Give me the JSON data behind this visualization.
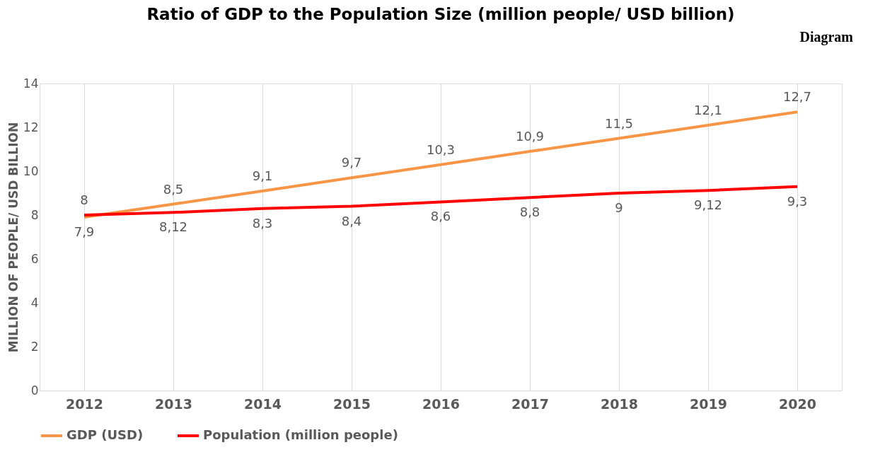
{
  "chart_data": {
    "type": "line",
    "title": "Ratio of GDP to the Population Size (million people/ USD billion)",
    "ylabel": "MILLION OF PEOPLE/ USD BILLION",
    "annotations": [
      "Diagram"
    ],
    "categories": [
      "2012",
      "2013",
      "2014",
      "2015",
      "2016",
      "2017",
      "2018",
      "2019",
      "2020"
    ],
    "series": [
      {
        "name": "GDP (USD)",
        "color": "#f79646",
        "values": [
          7.9,
          8.5,
          9.1,
          9.7,
          10.3,
          10.9,
          11.5,
          12.1,
          12.7
        ],
        "value_labels": [
          "7,9",
          "8,5",
          "9,1",
          "9,7",
          "10,3",
          "10,9",
          "11,5",
          "12,1",
          "12,7"
        ]
      },
      {
        "name": "Population (million people)",
        "color": "#ff0000",
        "values": [
          8,
          8.12,
          8.3,
          8.4,
          8.6,
          8.8,
          9,
          9.12,
          9.3
        ],
        "value_labels": [
          "8",
          "8,12",
          "8,3",
          "8,4",
          "8,6",
          "8,8",
          "9",
          "9,12",
          "9,3"
        ]
      }
    ],
    "ylim": [
      0,
      14
    ],
    "yticks": [
      0,
      2,
      4,
      6,
      8,
      10,
      12,
      14
    ],
    "grid": "x",
    "legend": "bottom",
    "marker": "none",
    "line_style": "solid"
  }
}
